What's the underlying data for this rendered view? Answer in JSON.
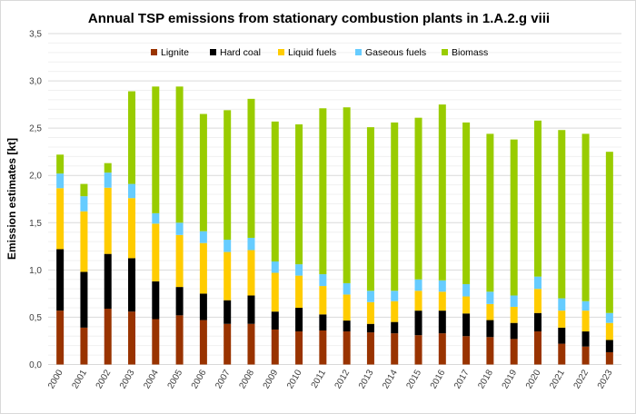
{
  "chart_data": {
    "type": "bar",
    "stacked": true,
    "title": "Annual TSP emissions from stationary combustion plants in 1.A.2.g viii",
    "xlabel": "",
    "ylabel": "Emission estimates [kt]",
    "ylim": [
      0,
      3.5
    ],
    "yticks": [
      "0,0",
      "0,5",
      "1,0",
      "1,5",
      "2,0",
      "2,5",
      "3,0",
      "3,5"
    ],
    "grid": true,
    "legend_position": "top",
    "categories": [
      "2000",
      "2001",
      "2002",
      "2003",
      "2004",
      "2005",
      "2006",
      "2007",
      "2008",
      "2009",
      "2010",
      "2011",
      "2012",
      "2013",
      "2014",
      "2015",
      "2016",
      "2017",
      "2018",
      "2019",
      "2020",
      "2021",
      "2022",
      "2023"
    ],
    "series": [
      {
        "name": "Lignite",
        "color": "#993300",
        "values": [
          0.57,
          0.39,
          0.59,
          0.56,
          0.48,
          0.52,
          0.47,
          0.43,
          0.43,
          0.37,
          0.35,
          0.36,
          0.35,
          0.34,
          0.33,
          0.31,
          0.33,
          0.3,
          0.29,
          0.27,
          0.35,
          0.22,
          0.19,
          0.13
        ]
      },
      {
        "name": "Hard coal",
        "color": "#000000",
        "values": [
          0.65,
          0.59,
          0.58,
          0.565,
          0.4,
          0.3,
          0.28,
          0.25,
          0.3,
          0.19,
          0.25,
          0.17,
          0.115,
          0.09,
          0.12,
          0.26,
          0.24,
          0.24,
          0.18,
          0.17,
          0.195,
          0.17,
          0.16,
          0.13
        ]
      },
      {
        "name": "Liquid fuels",
        "color": "#FFCC00",
        "values": [
          0.645,
          0.64,
          0.7,
          0.635,
          0.61,
          0.55,
          0.535,
          0.51,
          0.48,
          0.41,
          0.34,
          0.3,
          0.275,
          0.23,
          0.22,
          0.21,
          0.2,
          0.18,
          0.17,
          0.17,
          0.255,
          0.18,
          0.22,
          0.18
        ]
      },
      {
        "name": "Gaseous fuels",
        "color": "#66CCFF",
        "values": [
          0.155,
          0.16,
          0.16,
          0.15,
          0.11,
          0.13,
          0.125,
          0.13,
          0.13,
          0.12,
          0.12,
          0.125,
          0.12,
          0.12,
          0.11,
          0.12,
          0.12,
          0.13,
          0.13,
          0.12,
          0.13,
          0.13,
          0.1,
          0.105
        ]
      },
      {
        "name": "Biomass",
        "color": "#99CC00",
        "values": [
          0.2,
          0.13,
          0.1,
          0.98,
          1.34,
          1.44,
          1.24,
          1.37,
          1.47,
          1.48,
          1.48,
          1.755,
          1.86,
          1.73,
          1.78,
          1.71,
          1.86,
          1.71,
          1.67,
          1.65,
          1.65,
          1.78,
          1.77,
          1.705
        ]
      }
    ]
  }
}
